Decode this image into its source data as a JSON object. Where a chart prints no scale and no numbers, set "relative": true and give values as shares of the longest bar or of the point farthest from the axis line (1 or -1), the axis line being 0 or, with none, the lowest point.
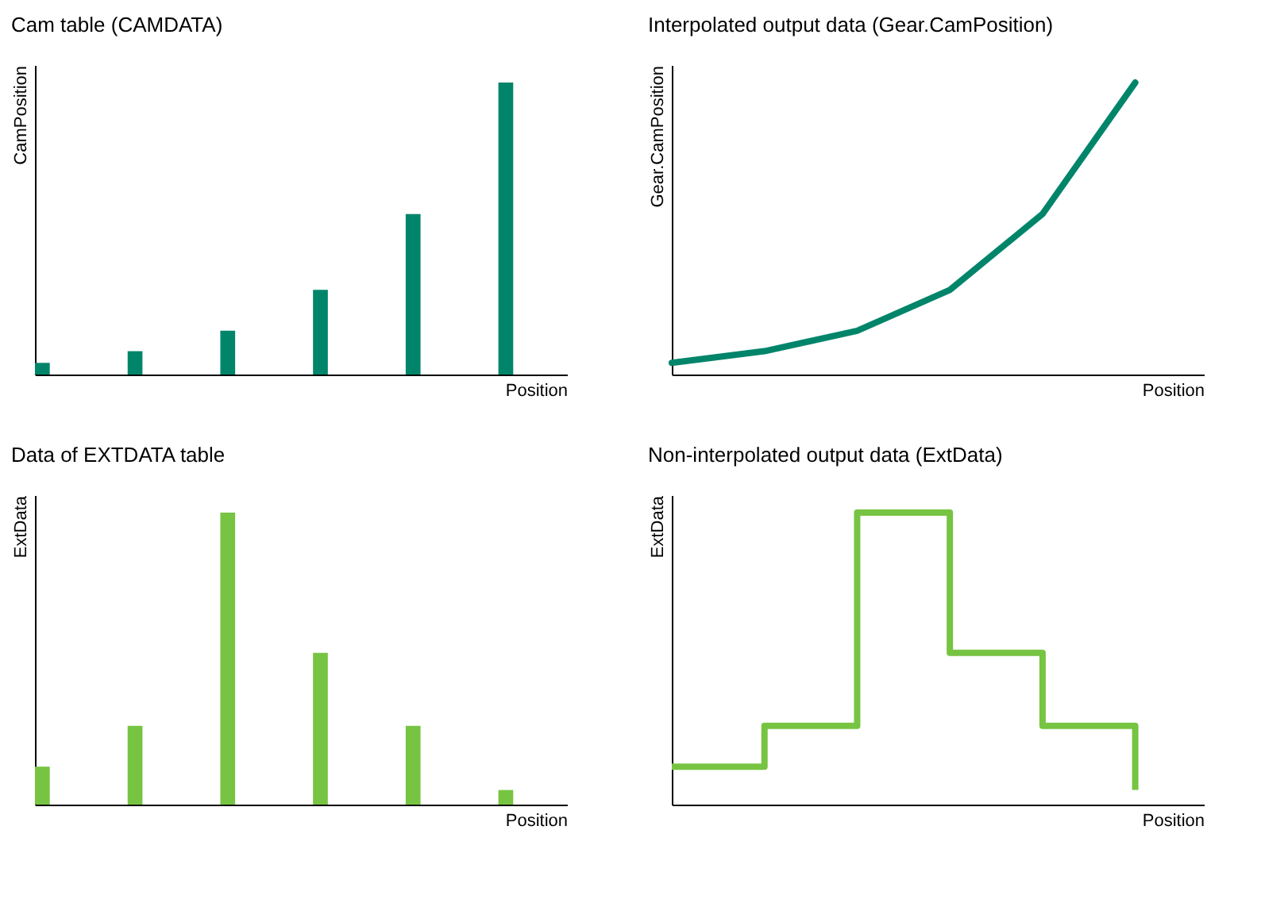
{
  "chart_data": [
    {
      "type": "bar",
      "title": "Cam table (CAMDATA)",
      "xlabel": "Position",
      "ylabel": "CamPosition",
      "relative": true,
      "categories": [
        null,
        null,
        null,
        null,
        null,
        null
      ],
      "values": [
        0.04,
        0.08,
        0.15,
        0.29,
        0.55,
        1
      ],
      "color": "#00856a"
    },
    {
      "type": "line",
      "title": "Interpolated output data (Gear.CamPosition)",
      "xlabel": "Position",
      "ylabel": "Gear.CamPosition",
      "relative": true,
      "categories": [
        null,
        null,
        null,
        null,
        null,
        null
      ],
      "values": [
        0.04,
        0.08,
        0.15,
        0.29,
        0.55,
        1
      ],
      "color": "#00856a"
    },
    {
      "type": "bar",
      "title": "Data of EXTDATA table",
      "xlabel": "Position",
      "ylabel": "ExtData",
      "relative": true,
      "categories": [
        null,
        null,
        null,
        null,
        null,
        null
      ],
      "values": [
        0.13,
        0.27,
        1,
        0.52,
        0.27,
        0.05
      ],
      "color": "#76c442"
    },
    {
      "type": "step",
      "title": "Non-interpolated output data (ExtData)",
      "xlabel": "Position",
      "ylabel": "ExtData",
      "relative": true,
      "categories": [
        null,
        null,
        null,
        null,
        null,
        null
      ],
      "values": [
        0.13,
        0.27,
        1,
        0.52,
        0.27,
        0.05
      ],
      "color": "#76c442"
    }
  ]
}
